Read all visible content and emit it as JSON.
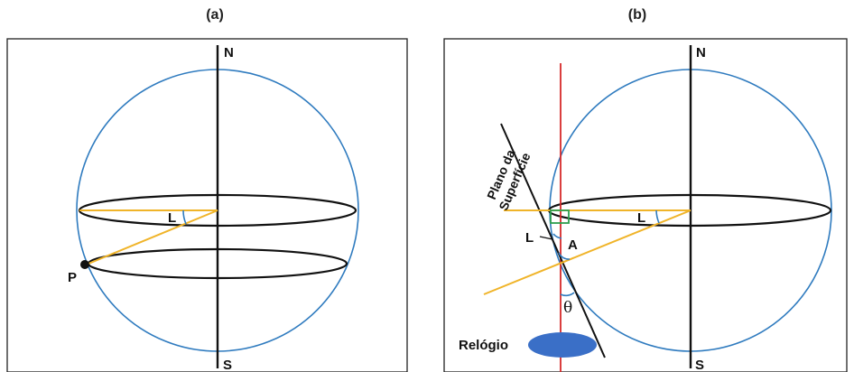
{
  "panels": {
    "a": {
      "title": "(a)",
      "north": "N",
      "south": "S",
      "latitude": "L",
      "point": "P"
    },
    "b": {
      "title": "(b)",
      "north": "N",
      "south": "S",
      "latitude_center": "L",
      "latitude_left": "L",
      "angle_a": "A",
      "theta": "θ",
      "plane_line1": "Plano da",
      "plane_line2": "Superfície",
      "clock": "Relógio"
    }
  },
  "colors": {
    "sphere": "#2f7bbf",
    "equator": "#111111",
    "axis": "#111111",
    "sun_ray": "#f0b429",
    "vertical": "#d62828",
    "right_angle": "#2e9e4f",
    "clock": "#3a6fc7",
    "frame": "#222222"
  }
}
